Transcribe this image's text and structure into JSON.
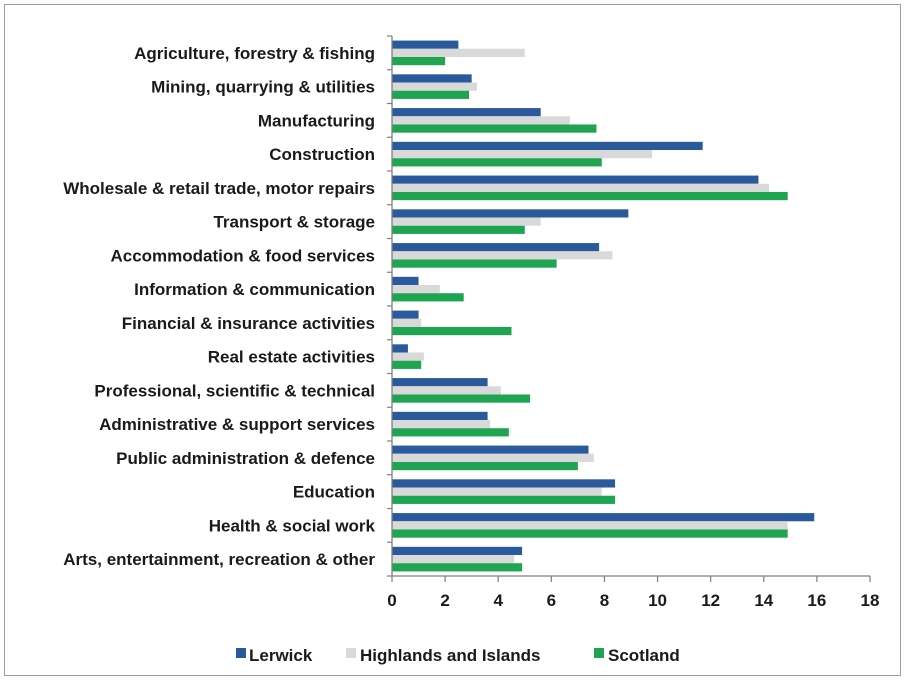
{
  "chart_data": {
    "type": "bar",
    "orientation": "horizontal",
    "categories": [
      "Agriculture, forestry & fishing",
      "Mining, quarrying & utilities",
      "Manufacturing",
      "Construction",
      "Wholesale & retail trade, motor repairs",
      "Transport & storage",
      "Accommodation & food services",
      "Information & communication",
      "Financial & insurance activities",
      "Real estate activities",
      "Professional, scientific & technical",
      "Administrative & support services",
      "Public administration & defence",
      "Education",
      "Health & social work",
      "Arts, entertainment, recreation & other"
    ],
    "series": [
      {
        "name": "Lerwick",
        "color": "#2a5a9b",
        "values": [
          2.5,
          3.0,
          5.6,
          11.7,
          13.8,
          8.9,
          7.8,
          1.0,
          1.0,
          0.6,
          3.6,
          3.6,
          7.4,
          8.4,
          15.9,
          4.9
        ]
      },
      {
        "name": "Highlands and Islands",
        "color": "#d9d9d9",
        "values": [
          5.0,
          3.2,
          6.7,
          9.8,
          14.2,
          5.6,
          8.3,
          1.8,
          1.1,
          1.2,
          4.1,
          3.7,
          7.6,
          7.9,
          14.9,
          4.6
        ]
      },
      {
        "name": "Scotland",
        "color": "#1fa552",
        "values": [
          2.0,
          2.9,
          7.7,
          7.9,
          14.9,
          5.0,
          6.2,
          2.7,
          4.5,
          1.1,
          5.2,
          4.4,
          7.0,
          8.4,
          14.9,
          4.9
        ]
      }
    ],
    "xlim": [
      0,
      18
    ],
    "xticks": [
      "0",
      "2",
      "4",
      "6",
      "8",
      "10",
      "12",
      "14",
      "16",
      "18"
    ],
    "legend_position": "bottom",
    "grid": false,
    "title": "",
    "xlabel": "",
    "ylabel": ""
  }
}
